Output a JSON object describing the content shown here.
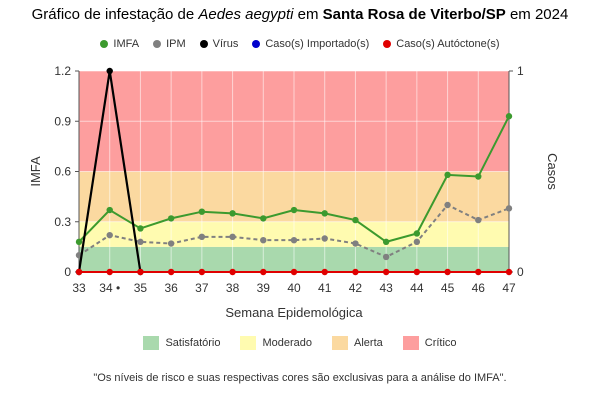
{
  "title": {
    "prefix": "Gráfico de infestação de ",
    "species": "Aedes aegypti",
    "mid": " em ",
    "place": "Santa Rosa de Viterbo/SP",
    "suffix": " em 2024"
  },
  "legend_top": [
    {
      "label": "IMFA",
      "color": "#3c9a2e"
    },
    {
      "label": "IPM",
      "color": "#808080"
    },
    {
      "label": "Vírus",
      "color": "#000000"
    },
    {
      "label": "Caso(s) Importado(s)",
      "color": "#0000cc"
    },
    {
      "label": "Caso(s) Autóctone(s)",
      "color": "#e00000"
    }
  ],
  "risk_bands": [
    {
      "label": "Satisfatório",
      "from": 0,
      "to": 0.15,
      "color": "#a9d9ad"
    },
    {
      "label": "Moderado",
      "from": 0.15,
      "to": 0.3,
      "color": "#fffbb0"
    },
    {
      "label": "Alerta",
      "from": 0.3,
      "to": 0.6,
      "color": "#fbd9a0"
    },
    {
      "label": "Crítico",
      "from": 0.6,
      "to": 1.2,
      "color": "#fd9e9e"
    }
  ],
  "footnote": "\"Os níveis de risco e suas respectivas cores são exclusivas para a análise do IMFA\".",
  "chart_data": {
    "type": "line",
    "xlabel": "Semana Epidemológica",
    "ylabel": "IMFA",
    "y2label": "Casos",
    "categories": [
      "33",
      "34 •",
      "35",
      "36",
      "37",
      "38",
      "39",
      "40",
      "41",
      "42",
      "43",
      "44",
      "45",
      "46",
      "47"
    ],
    "ylim": [
      0,
      1.2
    ],
    "yticks": [
      "0",
      "0.3",
      "0.6",
      "0.9",
      "1.2"
    ],
    "y2lim": [
      0,
      1
    ],
    "y2ticks": [
      "0",
      "1"
    ],
    "series": [
      {
        "name": "IMFA",
        "color": "#3c9a2e",
        "style": "solid",
        "axis": "left",
        "values": [
          0.18,
          0.37,
          0.26,
          0.32,
          0.36,
          0.35,
          0.32,
          0.37,
          0.35,
          0.31,
          0.18,
          0.23,
          0.58,
          0.57,
          0.93
        ]
      },
      {
        "name": "IPM",
        "color": "#808080",
        "style": "dashed",
        "axis": "left",
        "values": [
          0.1,
          0.22,
          0.18,
          0.17,
          0.21,
          0.21,
          0.19,
          0.19,
          0.2,
          0.17,
          0.09,
          0.18,
          0.4,
          0.31,
          0.38
        ]
      },
      {
        "name": "Vírus",
        "color": "#000000",
        "style": "solid",
        "axis": "right",
        "values": [
          0,
          1,
          0,
          null,
          null,
          null,
          null,
          null,
          null,
          null,
          null,
          null,
          null,
          null,
          null
        ]
      },
      {
        "name": "Caso(s) Autóctone(s)",
        "color": "#e00000",
        "style": "solid",
        "axis": "right",
        "values": [
          0,
          0,
          0,
          0,
          0,
          0,
          0,
          0,
          0,
          0,
          0,
          0,
          0,
          0,
          0
        ]
      }
    ]
  }
}
